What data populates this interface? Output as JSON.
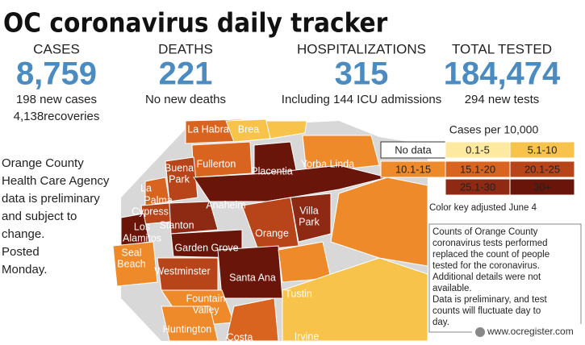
{
  "header": {
    "title": "OC coronavirus daily tracker"
  },
  "stats": [
    {
      "label": "CASES",
      "value": "8,759",
      "notes": [
        "198 new cases",
        "4,138recoveries"
      ]
    },
    {
      "label": "DEATHS",
      "value": "221",
      "notes": [
        "No new deaths"
      ]
    },
    {
      "label": "HOSPITALIZATIONS",
      "value": "315",
      "notes": [
        "Including 144 ICU admissions"
      ]
    },
    {
      "label": "TOTAL TESTED",
      "value": "184,474",
      "notes": [
        "294 new tests"
      ]
    }
  ],
  "side_note": [
    "Orange County",
    "Health Care Agency",
    "data is preliminary",
    "and subject to",
    "change.",
    "Posted",
    "Monday."
  ],
  "legend": {
    "title": "Cases per 10,000",
    "items": [
      "No data",
      "0.1-5",
      "5.1-10",
      "10.1-15",
      "15.1-20",
      "20.1-25",
      "25.1-30",
      "30+"
    ],
    "note": "Color key adjusted June 4"
  },
  "text_box": [
    "Counts of Orange County",
    "coronavirus tests performed",
    "replaced the count of people",
    "tested for the coronavirus.",
    "Additional details were not",
    "available.",
    "Data is preliminary, and test",
    "counts will fluctuate day to",
    "day."
  ],
  "map": {
    "labels": [
      {
        "lines": [
          "La Habra"
        ]
      },
      {
        "lines": [
          "Brea"
        ]
      },
      {
        "lines": [
          "Fullerton"
        ]
      },
      {
        "lines": [
          "Placentia"
        ]
      },
      {
        "lines": [
          "Yorba Linda"
        ]
      },
      {
        "lines": [
          "Buena",
          "Park"
        ]
      },
      {
        "lines": [
          "La"
        ]
      },
      {
        "lines": [
          "Palma"
        ]
      },
      {
        "lines": [
          "Cypress"
        ]
      },
      {
        "lines": [
          "Anaheim"
        ]
      },
      {
        "lines": [
          "Stanton"
        ]
      },
      {
        "lines": [
          "Los",
          "Alamitos"
        ]
      },
      {
        "lines": [
          "Garden Grove"
        ]
      },
      {
        "lines": [
          "Orange"
        ]
      },
      {
        "lines": [
          "Villa",
          "Park"
        ]
      },
      {
        "lines": [
          "Seal",
          "Beach"
        ]
      },
      {
        "lines": [
          "Westminster"
        ]
      },
      {
        "lines": [
          "Santa Ana"
        ]
      },
      {
        "lines": [
          "Tustin"
        ]
      },
      {
        "lines": [
          "Fountain",
          "Valley"
        ]
      },
      {
        "lines": [
          "Huntington"
        ]
      },
      {
        "lines": [
          "Irvine"
        ]
      },
      {
        "lines": [
          "Costa"
        ]
      }
    ]
  },
  "credit": "www.ocregister.com"
}
